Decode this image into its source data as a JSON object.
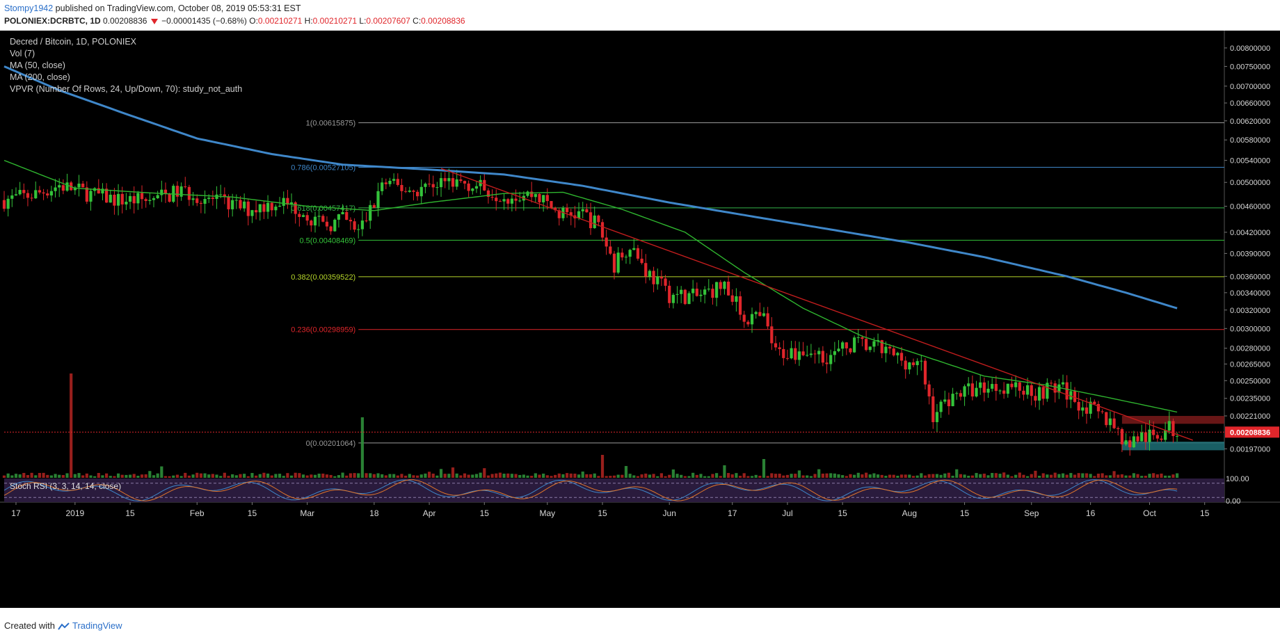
{
  "header": {
    "author": "Stompy1942",
    "published": "published on TradingView.com, October 08, 2019 05:53:31 EST",
    "symbol": "POLONIEX:DCRBTC, 1D",
    "last": "0.00208836",
    "change": "−0.00001435 (−0.68%)",
    "o_label": "O:",
    "o_value": "0.00210271",
    "h_label": "H:",
    "h_value": "0.00210271",
    "l_label": "L:",
    "l_value": "0.00207607",
    "c_label": "C:",
    "c_value": "0.00208836"
  },
  "legend": {
    "title": "Decred / Bitcoin, 1D, POLONIEX",
    "vol": "Vol (7)",
    "ma50": "MA (50, close)",
    "ma200": "MA (200, close)",
    "vpvr": "VPVR (Number Of Rows, 24, Up/Down, 70): study_not_auth"
  },
  "stoch_label": "Stoch RSI (3, 3, 14, 14, close)",
  "footer": {
    "created": "Created with",
    "brand": "TradingView"
  },
  "colors": {
    "up": "#26a69a",
    "up_candle": "#34c33a",
    "down": "#e0262b",
    "ma50": "#2fb52f",
    "ma200": "#3f87c9",
    "trend": "#c01d1d",
    "fib_1": "#9a9a9a",
    "fib_786": "#3f87c9",
    "fib_618": "#34b34a",
    "fib_5": "#35c43a",
    "fib_382": "#b6d62a",
    "fib_236": "#e0262b",
    "fib_0": "#9a9a9a",
    "stoch_bg": "#2a1b3d"
  },
  "chart_data": {
    "type": "candlestick",
    "y_axis": {
      "scale": "log",
      "range": [
        0.00178,
        0.0085
      ],
      "ticks": [
        "0.00800000",
        "0.00750000",
        "0.00700000",
        "0.00660000",
        "0.00620000",
        "0.00580000",
        "0.00540000",
        "0.00500000",
        "0.00460000",
        "0.00420000",
        "0.00390000",
        "0.00360000",
        "0.00340000",
        "0.00320000",
        "0.00300000",
        "0.00280000",
        "0.00265000",
        "0.00250000",
        "0.00235000",
        "0.00221000",
        "0.00197000"
      ],
      "last_price_label": "0.00208836"
    },
    "x_axis": {
      "range": [
        "2018-12-14",
        "2019-10-20"
      ],
      "ticks": [
        {
          "date": "2018-12-17",
          "label": "17"
        },
        {
          "date": "2019-01-01",
          "label": "2019"
        },
        {
          "date": "2019-01-15",
          "label": "15"
        },
        {
          "date": "2019-02-01",
          "label": "Feb"
        },
        {
          "date": "2019-02-15",
          "label": "15"
        },
        {
          "date": "2019-03-01",
          "label": "Mar"
        },
        {
          "date": "2019-03-18",
          "label": "18"
        },
        {
          "date": "2019-04-01",
          "label": "Apr"
        },
        {
          "date": "2019-04-15",
          "label": "15"
        },
        {
          "date": "2019-05-01",
          "label": "May"
        },
        {
          "date": "2019-05-15",
          "label": "15"
        },
        {
          "date": "2019-06-01",
          "label": "Jun"
        },
        {
          "date": "2019-06-17",
          "label": "17"
        },
        {
          "date": "2019-07-01",
          "label": "Jul"
        },
        {
          "date": "2019-07-15",
          "label": "15"
        },
        {
          "date": "2019-08-01",
          "label": "Aug"
        },
        {
          "date": "2019-08-15",
          "label": "15"
        },
        {
          "date": "2019-09-01",
          "label": "Sep"
        },
        {
          "date": "2019-09-16",
          "label": "16"
        },
        {
          "date": "2019-10-01",
          "label": "Oct"
        },
        {
          "date": "2019-10-15",
          "label": "15"
        }
      ]
    },
    "price_anchors": [
      [
        "2018-12-14",
        0.0047
      ],
      [
        "2018-12-22",
        0.0048
      ],
      [
        "2018-12-28",
        0.00495
      ],
      [
        "2019-01-05",
        0.0048
      ],
      [
        "2019-01-12",
        0.0047
      ],
      [
        "2019-01-20",
        0.0047
      ],
      [
        "2019-01-28",
        0.00485
      ],
      [
        "2019-02-05",
        0.0047
      ],
      [
        "2019-02-14",
        0.00455
      ],
      [
        "2019-02-22",
        0.00468
      ],
      [
        "2019-02-28",
        0.00452
      ],
      [
        "2019-03-05",
        0.00428
      ],
      [
        "2019-03-10",
        0.0044
      ],
      [
        "2019-03-14",
        0.0042
      ],
      [
        "2019-03-18",
        0.00465
      ],
      [
        "2019-03-20",
        0.00498
      ],
      [
        "2019-03-28",
        0.00485
      ],
      [
        "2019-04-04",
        0.00502
      ],
      [
        "2019-04-10",
        0.005
      ],
      [
        "2019-04-20",
        0.00478
      ],
      [
        "2019-04-28",
        0.0048
      ],
      [
        "2019-05-04",
        0.00448
      ],
      [
        "2019-05-10",
        0.00448
      ],
      [
        "2019-05-14",
        0.0043
      ],
      [
        "2019-05-18",
        0.00375
      ],
      [
        "2019-05-22",
        0.00405
      ],
      [
        "2019-05-26",
        0.00368
      ],
      [
        "2019-06-01",
        0.00338
      ],
      [
        "2019-06-08",
        0.00335
      ],
      [
        "2019-06-15",
        0.0035
      ],
      [
        "2019-06-20",
        0.00312
      ],
      [
        "2019-06-25",
        0.0031
      ],
      [
        "2019-06-28",
        0.00275
      ],
      [
        "2019-07-05",
        0.00278
      ],
      [
        "2019-07-12",
        0.00272
      ],
      [
        "2019-07-18",
        0.00285
      ],
      [
        "2019-07-24",
        0.0028
      ],
      [
        "2019-07-31",
        0.00268
      ],
      [
        "2019-08-04",
        0.00262
      ],
      [
        "2019-08-07",
        0.00222
      ],
      [
        "2019-08-12",
        0.00238
      ],
      [
        "2019-08-20",
        0.00245
      ],
      [
        "2019-08-26",
        0.00246
      ],
      [
        "2019-09-02",
        0.0024
      ],
      [
        "2019-09-08",
        0.00245
      ],
      [
        "2019-09-13",
        0.00232
      ],
      [
        "2019-09-18",
        0.00222
      ],
      [
        "2019-09-22",
        0.00215
      ],
      [
        "2019-09-25",
        0.002
      ],
      [
        "2019-09-28",
        0.00205
      ],
      [
        "2019-10-02",
        0.00205
      ],
      [
        "2019-10-06",
        0.00212
      ],
      [
        "2019-10-08",
        0.00209
      ]
    ],
    "ma50": [
      [
        "2018-12-14",
        0.0054
      ],
      [
        "2019-01-01",
        0.0049
      ],
      [
        "2019-01-20",
        0.00482
      ],
      [
        "2019-02-10",
        0.00475
      ],
      [
        "2019-03-01",
        0.0046
      ],
      [
        "2019-03-18",
        0.00453
      ],
      [
        "2019-04-01",
        0.00466
      ],
      [
        "2019-04-20",
        0.00481
      ],
      [
        "2019-05-05",
        0.00483
      ],
      [
        "2019-05-20",
        0.00455
      ],
      [
        "2019-06-05",
        0.0042
      ],
      [
        "2019-06-20",
        0.00365
      ],
      [
        "2019-07-05",
        0.00322
      ],
      [
        "2019-07-20",
        0.00292
      ],
      [
        "2019-08-05",
        0.00272
      ],
      [
        "2019-08-20",
        0.00254
      ],
      [
        "2019-09-05",
        0.00246
      ],
      [
        "2019-09-20",
        0.00236
      ],
      [
        "2019-10-08",
        0.00224
      ]
    ],
    "ma200": [
      [
        "2018-12-14",
        0.0075
      ],
      [
        "2018-12-28",
        0.0069
      ],
      [
        "2019-01-15",
        0.00632
      ],
      [
        "2019-02-01",
        0.00583
      ],
      [
        "2019-02-20",
        0.00552
      ],
      [
        "2019-03-10",
        0.00532
      ],
      [
        "2019-04-01",
        0.00523
      ],
      [
        "2019-04-20",
        0.00514
      ],
      [
        "2019-05-10",
        0.00494
      ],
      [
        "2019-06-01",
        0.00466
      ],
      [
        "2019-06-20",
        0.00446
      ],
      [
        "2019-07-10",
        0.00426
      ],
      [
        "2019-08-01",
        0.00405
      ],
      [
        "2019-08-20",
        0.00385
      ],
      [
        "2019-09-10",
        0.0036
      ],
      [
        "2019-09-25",
        0.0034
      ],
      [
        "2019-10-08",
        0.00322
      ]
    ],
    "trendline": [
      [
        "2019-04-04",
        0.00525
      ],
      [
        "2019-10-12",
        0.00203
      ]
    ],
    "fib_levels": [
      {
        "ratio": "1",
        "price": 0.00615875,
        "label": "1(0.00615875)",
        "key": "fib_1"
      },
      {
        "ratio": "0.786",
        "price": 0.00527105,
        "label": "0.786(0.00527105)",
        "key": "fib_786"
      },
      {
        "ratio": "0.618",
        "price": 0.00457417,
        "label": "0.618(0.00457417)",
        "key": "fib_618"
      },
      {
        "ratio": "0.5",
        "price": 0.00408469,
        "label": "0.5(0.00408469)",
        "key": "fib_5"
      },
      {
        "ratio": "0.382",
        "price": 0.00359522,
        "label": "0.382(0.00359522)",
        "key": "fib_382"
      },
      {
        "ratio": "0.236",
        "price": 0.00298959,
        "label": "0.236(0.00298959)",
        "key": "fib_236"
      },
      {
        "ratio": "0",
        "price": 0.00201064,
        "label": "0(0.00201064)",
        "key": "fib_0"
      }
    ],
    "fib_range": [
      "2019-03-14",
      "2019-10-20"
    ],
    "resistance_zone": {
      "from": "2019-09-24",
      "to": "2019-10-20",
      "price_low": 0.00215,
      "price_high": 0.00221
    },
    "support_zone": {
      "from": "2019-09-24",
      "to": "2019-10-20",
      "price_low": 0.00196,
      "price_high": 0.00202
    },
    "volume_spikes": [
      [
        "2018-12-31",
        1.0
      ],
      [
        "2019-03-15",
        0.58
      ],
      [
        "2019-05-15",
        0.22
      ],
      [
        "2019-06-25",
        0.18
      ]
    ],
    "stoch_rsi": {
      "levels": [
        "100.00",
        "0.00"
      ],
      "upper_band": 80,
      "lower_band": 20
    }
  }
}
